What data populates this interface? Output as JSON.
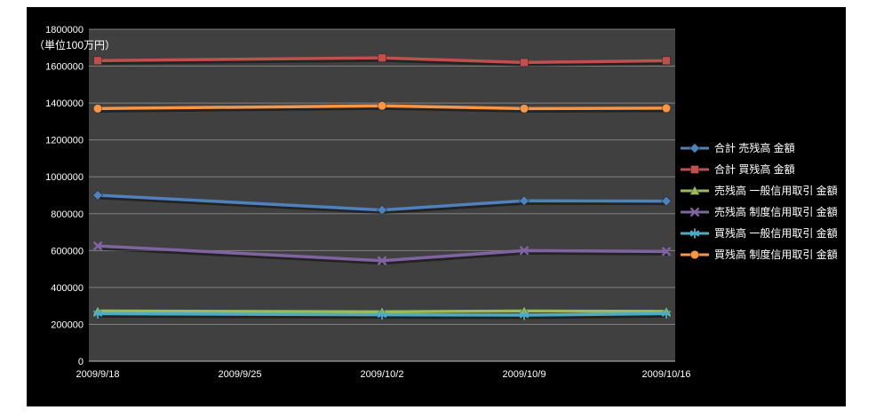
{
  "chart": {
    "background": "#000000",
    "plot_background": "#404040",
    "gridline_color": "#7f7f7f",
    "axis_line_color": "#bfbfbf",
    "axis_text_color": "#ffffff",
    "page_background": "#ffffff"
  },
  "chart_data": {
    "type": "line",
    "y_axis_title": "（単位100万円）",
    "x_tick_labels": [
      "2009/9/18",
      "2009/9/25",
      "2009/10/2",
      "2009/10/9",
      "2009/10/16"
    ],
    "point_dates": [
      "2009/9/18",
      "2009/10/2",
      "2009/10/9",
      "2009/10/16"
    ],
    "point_tick_indices": [
      0,
      2,
      3,
      4
    ],
    "ylim": [
      0,
      1800000
    ],
    "y_tick_step": 200000,
    "grid": true,
    "legend_position": "right",
    "series": [
      {
        "name": "合計 売残高 金額",
        "color": "#4F81BD",
        "marker": "diamond",
        "values": [
          900000,
          820000,
          870000,
          868000
        ]
      },
      {
        "name": "合計 買残高 金額",
        "color": "#C0504D",
        "marker": "square",
        "values": [
          1630000,
          1645000,
          1620000,
          1630000
        ]
      },
      {
        "name": "売残高 一般信用取引 金額",
        "color": "#9BBB59",
        "marker": "triangle",
        "values": [
          272000,
          268000,
          272000,
          270000
        ]
      },
      {
        "name": "売残高 制度信用取引 金額",
        "color": "#8064A2",
        "marker": "x",
        "values": [
          625000,
          545000,
          600000,
          595000
        ]
      },
      {
        "name": "買残高 一般信用取引 金額",
        "color": "#4BACC6",
        "marker": "asterisk",
        "values": [
          258000,
          252000,
          250000,
          258000
        ]
      },
      {
        "name": "買残高 制度信用取引 金額",
        "color": "#F79646",
        "marker": "circle",
        "values": [
          1370000,
          1385000,
          1370000,
          1372000
        ]
      }
    ]
  }
}
